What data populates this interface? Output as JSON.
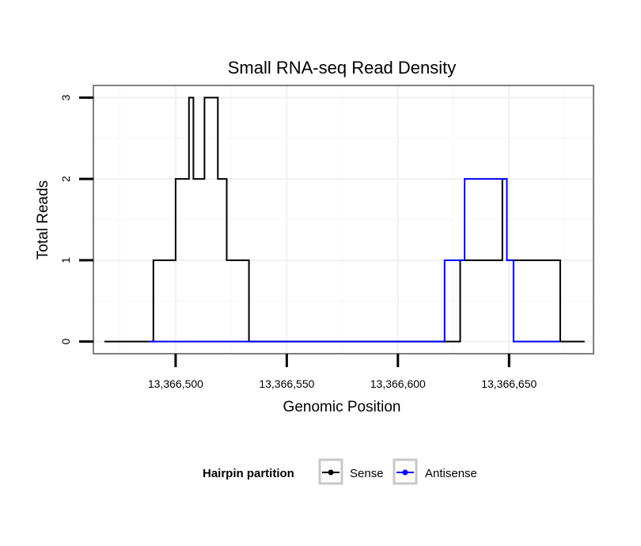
{
  "chart_data": {
    "type": "line",
    "title": "Small RNA-seq Read Density",
    "xlabel": "Genomic Position",
    "ylabel": "Total Reads",
    "xlim": [
      13366463,
      13366688
    ],
    "ylim": [
      -0.15,
      3.15
    ],
    "x_ticks": [
      13366500,
      13366550,
      13366600,
      13366650
    ],
    "x_tick_labels": [
      "13,366,500",
      "13,366,550",
      "13,366,600",
      "13,366,650"
    ],
    "y_ticks": [
      0,
      1,
      2,
      3
    ],
    "y_tick_labels": [
      "0",
      "1",
      "2",
      "3"
    ],
    "grid": true,
    "legend": {
      "title": "Hairpin partition",
      "position": "bottom",
      "entries": [
        {
          "name": "Sense",
          "color": "#000000"
        },
        {
          "name": "Antisense",
          "color": "#0000ff"
        }
      ]
    },
    "series": [
      {
        "name": "Sense",
        "color": "#000000",
        "points": [
          [
            13366468,
            0
          ],
          [
            13366490,
            0
          ],
          [
            13366490,
            1
          ],
          [
            13366500,
            1
          ],
          [
            13366500,
            2
          ],
          [
            13366506,
            2
          ],
          [
            13366506,
            3
          ],
          [
            13366508,
            3
          ],
          [
            13366508,
            2
          ],
          [
            13366513,
            2
          ],
          [
            13366513,
            3
          ],
          [
            13366519,
            3
          ],
          [
            13366519,
            2
          ],
          [
            13366523,
            2
          ],
          [
            13366523,
            1
          ],
          [
            13366533,
            1
          ],
          [
            13366533,
            0
          ],
          [
            13366628,
            0
          ],
          [
            13366628,
            1
          ],
          [
            13366647,
            1
          ],
          [
            13366647,
            2
          ],
          [
            13366649,
            2
          ],
          [
            13366649,
            1
          ],
          [
            13366673,
            1
          ],
          [
            13366673,
            0
          ],
          [
            13366684,
            0
          ]
        ]
      },
      {
        "name": "Antisense",
        "color": "#0000ff",
        "points": [
          [
            13366488,
            0
          ],
          [
            13366621,
            0
          ],
          [
            13366621,
            1
          ],
          [
            13366630,
            1
          ],
          [
            13366630,
            2
          ],
          [
            13366649,
            2
          ],
          [
            13366649,
            1
          ],
          [
            13366652,
            1
          ],
          [
            13366652,
            0
          ],
          [
            13366673,
            0
          ]
        ]
      }
    ]
  }
}
